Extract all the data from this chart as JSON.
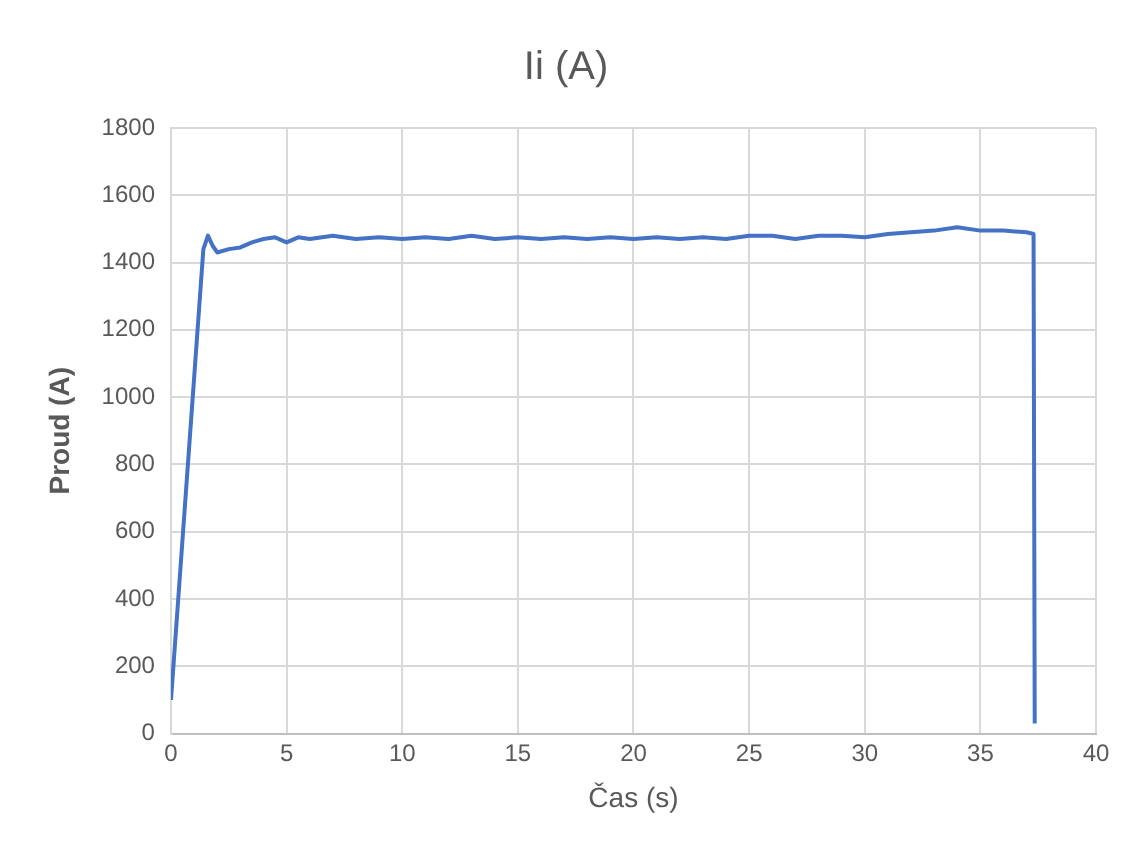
{
  "chart_data": {
    "type": "line",
    "title": "Ii (A)",
    "xlabel": "Čas (s)",
    "ylabel": "Proud (A)",
    "x": [
      0,
      1.4,
      1.6,
      1.8,
      2,
      2.5,
      3,
      3.5,
      4,
      4.5,
      5,
      5.5,
      6,
      7,
      8,
      9,
      10,
      11,
      12,
      13,
      14,
      15,
      16,
      17,
      18,
      19,
      20,
      21,
      22,
      23,
      24,
      25,
      26,
      27,
      28,
      29,
      30,
      31,
      32,
      33,
      34,
      35,
      36,
      37,
      37.3,
      37.35
    ],
    "series": [
      {
        "color": "#4472c4",
        "values": [
          100,
          1440,
          1480,
          1450,
          1430,
          1440,
          1445,
          1460,
          1470,
          1475,
          1460,
          1475,
          1470,
          1480,
          1470,
          1475,
          1470,
          1475,
          1470,
          1480,
          1470,
          1475,
          1470,
          1475,
          1470,
          1475,
          1470,
          1475,
          1470,
          1475,
          1470,
          1480,
          1480,
          1470,
          1480,
          1480,
          1475,
          1485,
          1490,
          1495,
          1505,
          1495,
          1495,
          1490,
          1485,
          30
        ]
      }
    ],
    "xlim": [
      0,
      40
    ],
    "xticks": [
      0,
      5,
      10,
      15,
      20,
      25,
      30,
      35,
      40
    ],
    "ylim": [
      0,
      1800
    ],
    "yticks": [
      0,
      200,
      400,
      600,
      800,
      1000,
      1200,
      1400,
      1600,
      1800
    ],
    "grid": true,
    "legend": false,
    "marker": "none",
    "line_style": "solid"
  }
}
